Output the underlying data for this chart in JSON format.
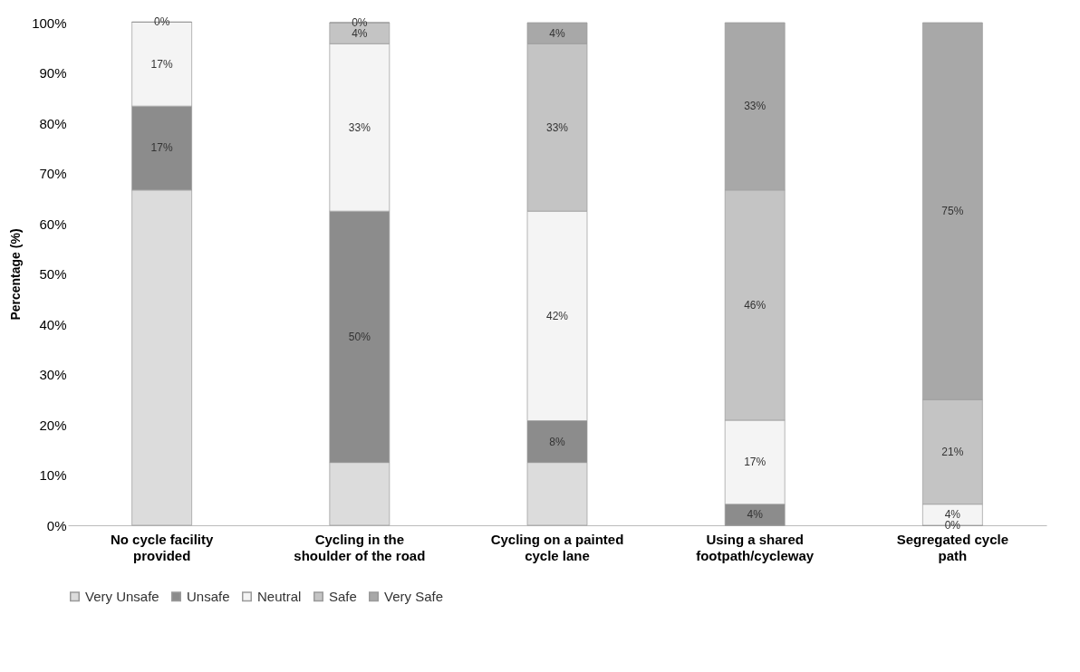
{
  "chart_data": {
    "type": "bar",
    "stacked": true,
    "ylabel": "Percentage (%)",
    "categories": [
      "No cycle facility provided",
      "Cycling in the shoulder of the road",
      "Cycling on a painted cycle lane",
      "Using a shared footpath/cycleway",
      "Segregated cycle path"
    ],
    "ylim": [
      0,
      100
    ],
    "yticks": [
      {
        "value": 0,
        "label": "0%"
      },
      {
        "value": 10,
        "label": "10%"
      },
      {
        "value": 20,
        "label": "20%"
      },
      {
        "value": 30,
        "label": "30%"
      },
      {
        "value": 40,
        "label": "40%"
      },
      {
        "value": 50,
        "label": "50%"
      },
      {
        "value": 60,
        "label": "60%"
      },
      {
        "value": 70,
        "label": "70%"
      },
      {
        "value": 80,
        "label": "80%"
      },
      {
        "value": 90,
        "label": "90%"
      },
      {
        "value": 100,
        "label": "100%"
      }
    ],
    "series": [
      {
        "name": "Very Unsafe",
        "color": "#dcdcdc",
        "values": [
          66.7,
          12.5,
          12.5,
          0,
          0
        ],
        "value_labels": [
          null,
          null,
          null,
          null,
          null
        ]
      },
      {
        "name": "Unsafe",
        "color": "#8c8c8c",
        "values": [
          16.7,
          50,
          8.3,
          4.2,
          0
        ],
        "value_labels": [
          "17%",
          "50%",
          "8%",
          "4%",
          "0%"
        ]
      },
      {
        "name": "Neutral",
        "color": "#f4f4f4",
        "values": [
          16.7,
          33.3,
          41.7,
          16.7,
          4.2
        ],
        "value_labels": [
          "17%",
          "33%",
          "42%",
          "17%",
          "4%"
        ]
      },
      {
        "name": "Safe",
        "color": "#c4c4c4",
        "values": [
          0,
          4.2,
          33.3,
          45.8,
          20.8
        ],
        "value_labels": [
          null,
          "4%",
          "33%",
          "46%",
          "21%"
        ]
      },
      {
        "name": "Very Safe",
        "color": "#a8a8a8",
        "values": [
          0,
          0,
          4.2,
          33.3,
          75
        ],
        "value_labels": [
          "0%",
          "0%",
          "4%",
          "33%",
          "75%"
        ]
      }
    ],
    "legend": "bottom",
    "grid": false
  }
}
